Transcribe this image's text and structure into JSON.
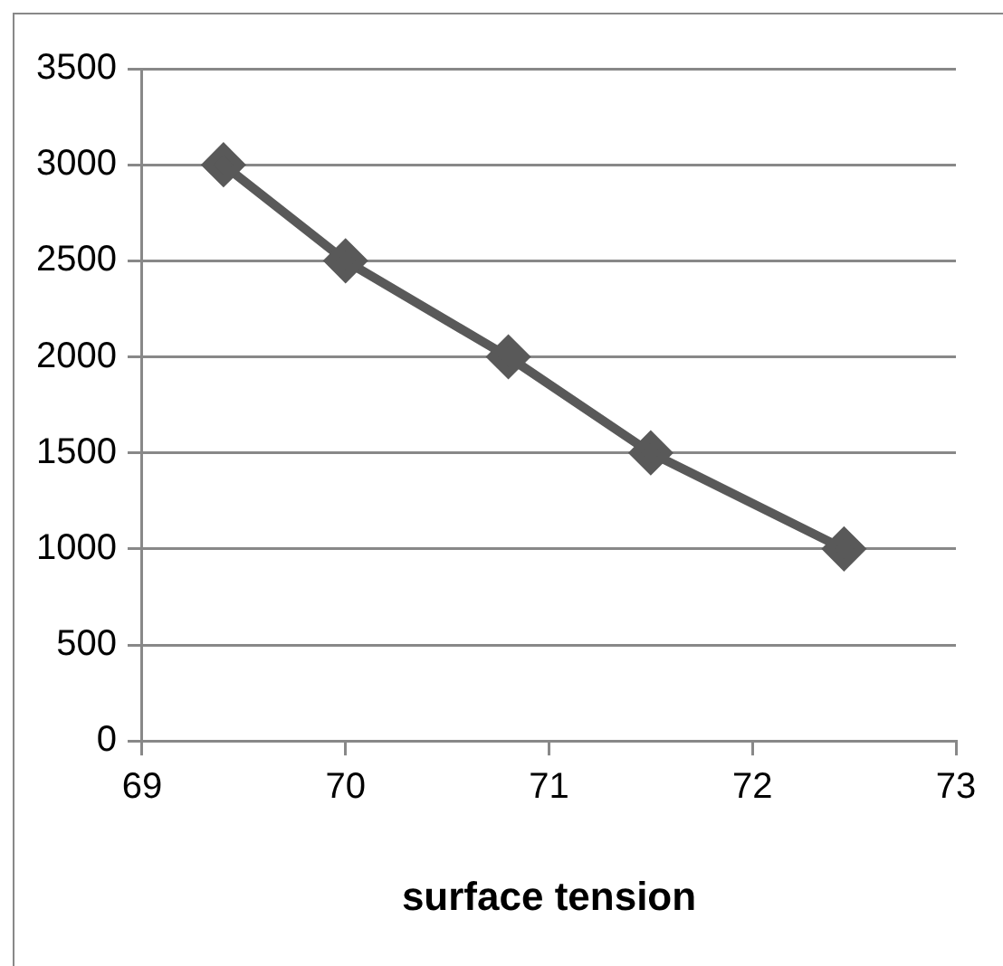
{
  "chart_data": {
    "type": "line",
    "xlabel": "surface tension",
    "x": [
      69.4,
      70,
      70.8,
      71.5,
      72.45
    ],
    "series": [
      {
        "color": "#595959",
        "values": [
          3000,
          2500,
          2000,
          1500,
          1000
        ]
      }
    ],
    "xlim": [
      69,
      73
    ],
    "xticks": [
      69,
      70,
      71,
      72,
      73
    ],
    "ylim": [
      0,
      3500
    ],
    "yticks": [
      0,
      500,
      1000,
      1500,
      2000,
      2500,
      3000,
      3500
    ],
    "grid": "y",
    "legend": false,
    "marker": "diamond",
    "line_style": "solid"
  }
}
